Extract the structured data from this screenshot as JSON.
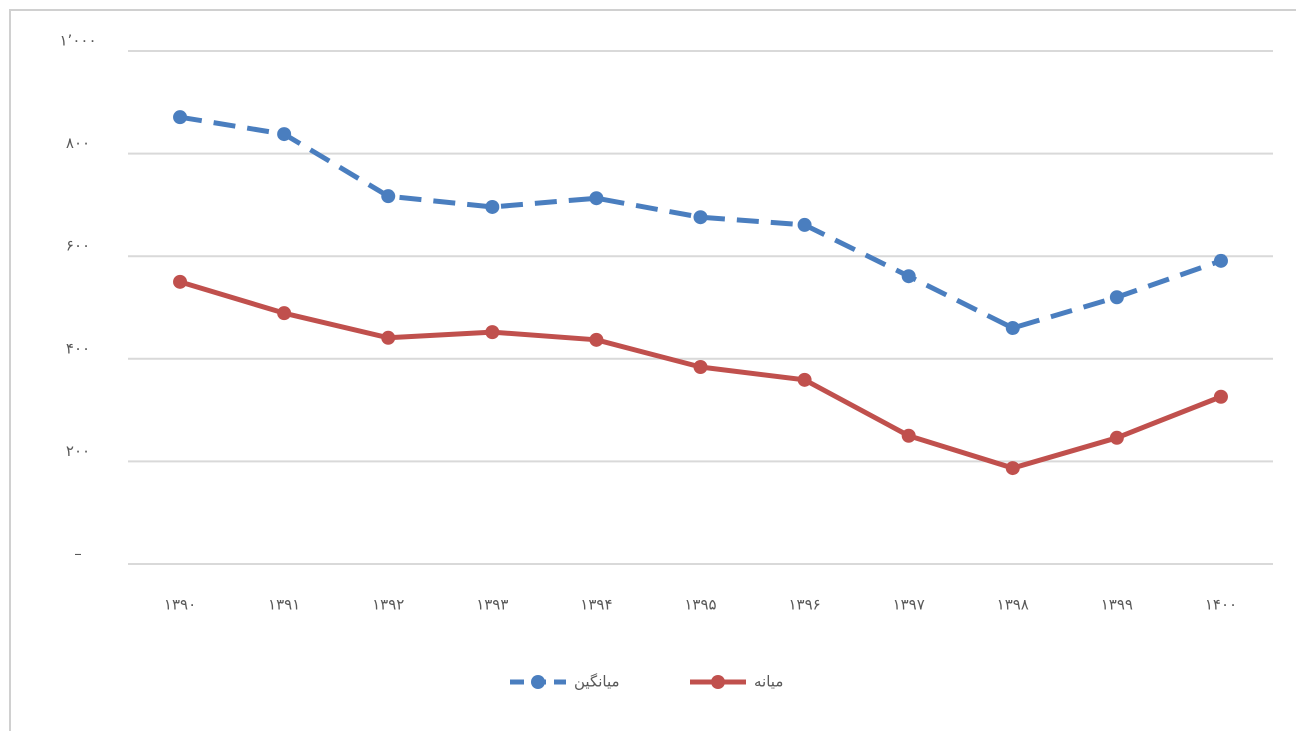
{
  "chart_data": {
    "type": "line",
    "categories": [
      "۱۳۹۰",
      "۱۳۹۱",
      "۱۳۹۲",
      "۱۳۹۳",
      "۱۳۹۴",
      "۱۳۹۵",
      "۱۳۹۶",
      "۱۳۹۷",
      "۱۳۹۸",
      "۱۳۹۹",
      "۱۴۰۰"
    ],
    "series": [
      {
        "name": "میانگین",
        "color": "#4a7ebf",
        "dashed": true,
        "values": [
          871,
          838,
          717,
          696,
          713,
          676,
          661,
          561,
          460,
          520,
          591
        ]
      },
      {
        "name": "میانه",
        "color": "#c0504d",
        "dashed": false,
        "values": [
          550,
          489,
          441,
          452,
          437,
          384,
          359,
          250,
          187,
          246,
          326
        ]
      }
    ],
    "ylim": [
      0,
      1000
    ],
    "yticks": [
      {
        "value": 0,
        "label": "–"
      },
      {
        "value": 200,
        "label": "۲۰۰"
      },
      {
        "value": 400,
        "label": "۴۰۰"
      },
      {
        "value": 600,
        "label": "۶۰۰"
      },
      {
        "value": 800,
        "label": "۸۰۰"
      },
      {
        "value": 1000,
        "label": "۱٬۰۰۰"
      }
    ],
    "grid": true
  }
}
